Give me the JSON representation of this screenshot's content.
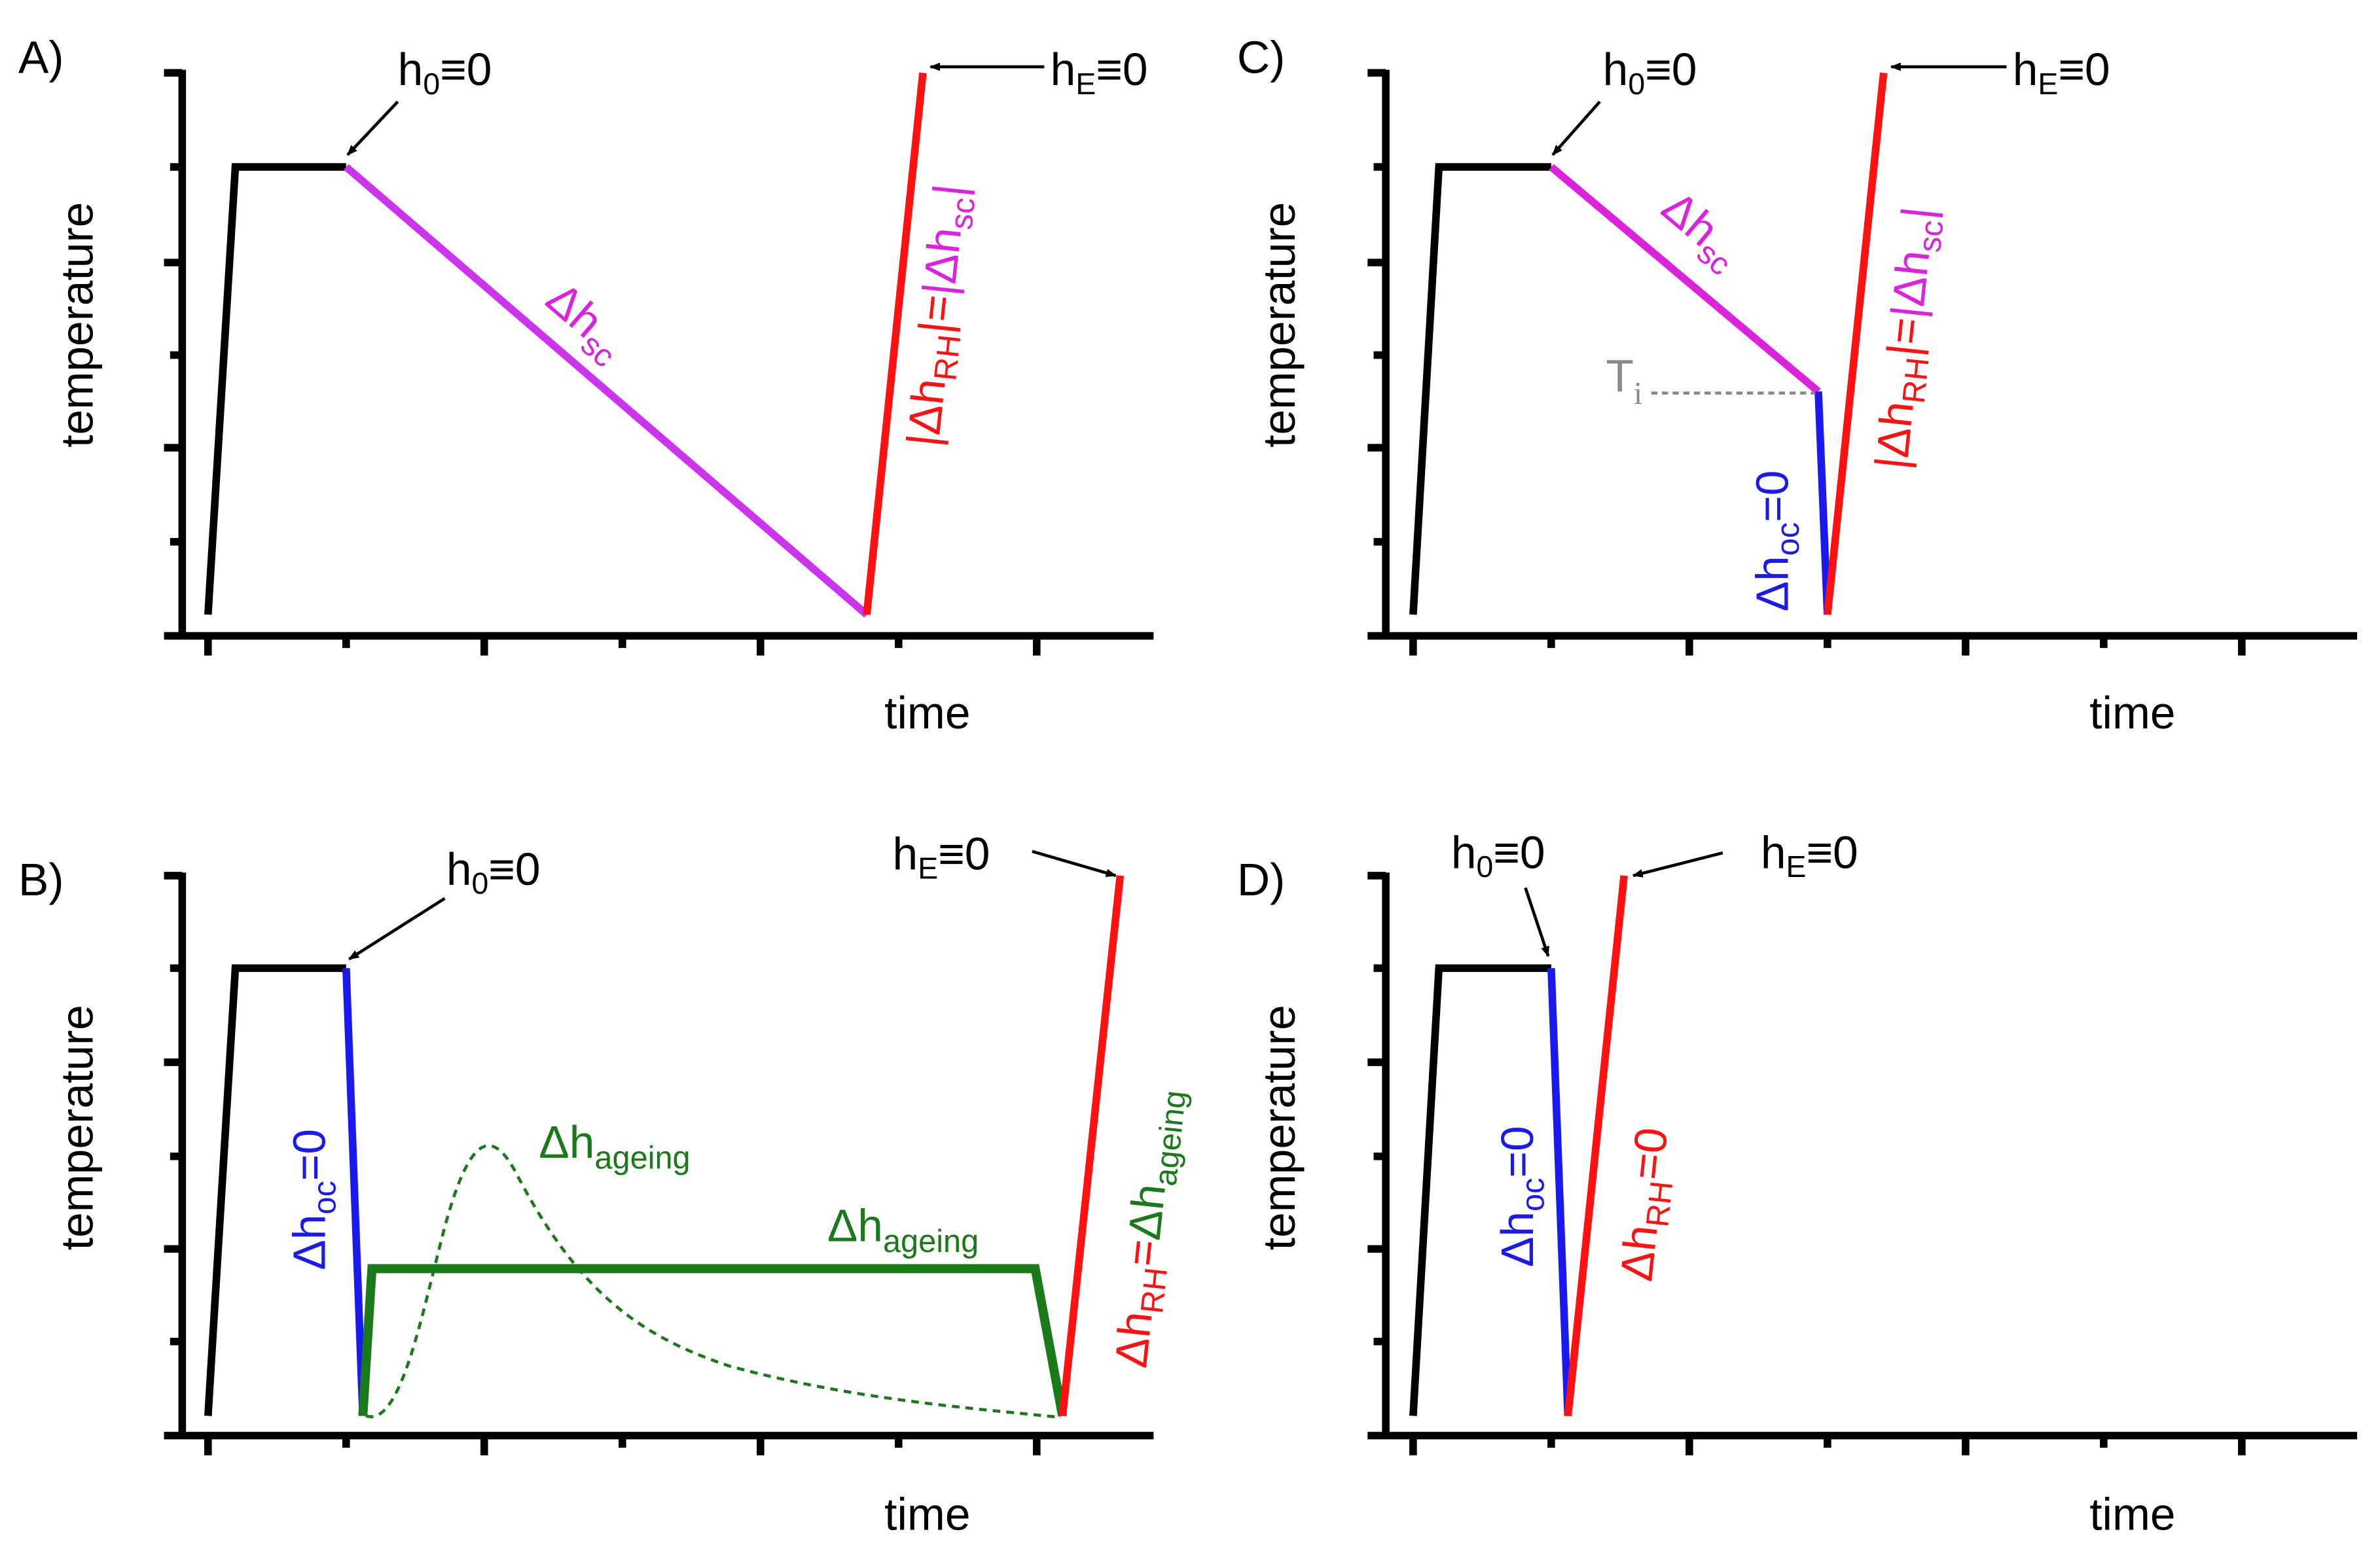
{
  "colors": {
    "axis": "#000000",
    "hold": "#000000",
    "supercool": "#cc33ee",
    "supercool_text": "#dd22dd",
    "overcool": "#1a1aee",
    "reheat": "#ff1111",
    "ageing": "#1a7a1a",
    "guide": "#888888"
  },
  "common": {
    "ylabel": "temperature",
    "xlabel": "time",
    "h0": "h",
    "h0_sub": "0",
    "h0_rest": "≡0",
    "hE": "h",
    "hE_sub": "E",
    "hE_rest": "≡0"
  },
  "panels": [
    {
      "id": "A",
      "label": "A)",
      "segments": [
        "heating",
        "isothermal-hold",
        "slow-cooling",
        "reheating"
      ],
      "annotations": {
        "sc": {
          "d": "Δh",
          "sub": "sc"
        },
        "rh_eq": {
          "p1": "|Δh",
          "s1": "RH",
          "p2": "|=",
          "p3": "|Δh",
          "s2": "sc",
          "p4": "|"
        }
      }
    },
    {
      "id": "B",
      "label": "B)",
      "segments": [
        "heating",
        "isothermal-hold",
        "fast-cooling",
        "quick-heating",
        "isothermal-ageing",
        "cooling",
        "reheating"
      ],
      "annotations": {
        "oc": {
          "d": "Δh",
          "sub": "oc",
          "rest": "=0"
        },
        "ageing_peak": {
          "d": "Δh",
          "sub": "ageing"
        },
        "ageing_line": {
          "d": "Δh",
          "sub": "ageing"
        },
        "rh_eq": {
          "d1": "Δh",
          "s1": "RH",
          "eq": "=",
          "d2": "Δh",
          "s2": "ageing"
        }
      }
    },
    {
      "id": "C",
      "label": "C)",
      "segments": [
        "heating",
        "isothermal-hold",
        "slow-cooling",
        "fast-cooling",
        "reheating"
      ],
      "annotations": {
        "sc": {
          "d": "Δh",
          "sub": "sc"
        },
        "ti": {
          "t": "T",
          "sub": "i"
        },
        "oc": {
          "d": "Δh",
          "sub": "oc",
          "rest": "=0"
        },
        "rh_eq": {
          "p1": "|Δh",
          "s1": "RH",
          "p2": "|=",
          "p3": "|Δh",
          "s2": "sc",
          "p4": "|"
        }
      }
    },
    {
      "id": "D",
      "label": "D)",
      "segments": [
        "heating",
        "isothermal-hold",
        "fast-cooling",
        "reheating"
      ],
      "annotations": {
        "oc": {
          "d": "Δh",
          "sub": "oc",
          "rest": "=0"
        },
        "rh": {
          "d": "Δh",
          "sub": "RH",
          "rest": "=0"
        }
      }
    }
  ]
}
